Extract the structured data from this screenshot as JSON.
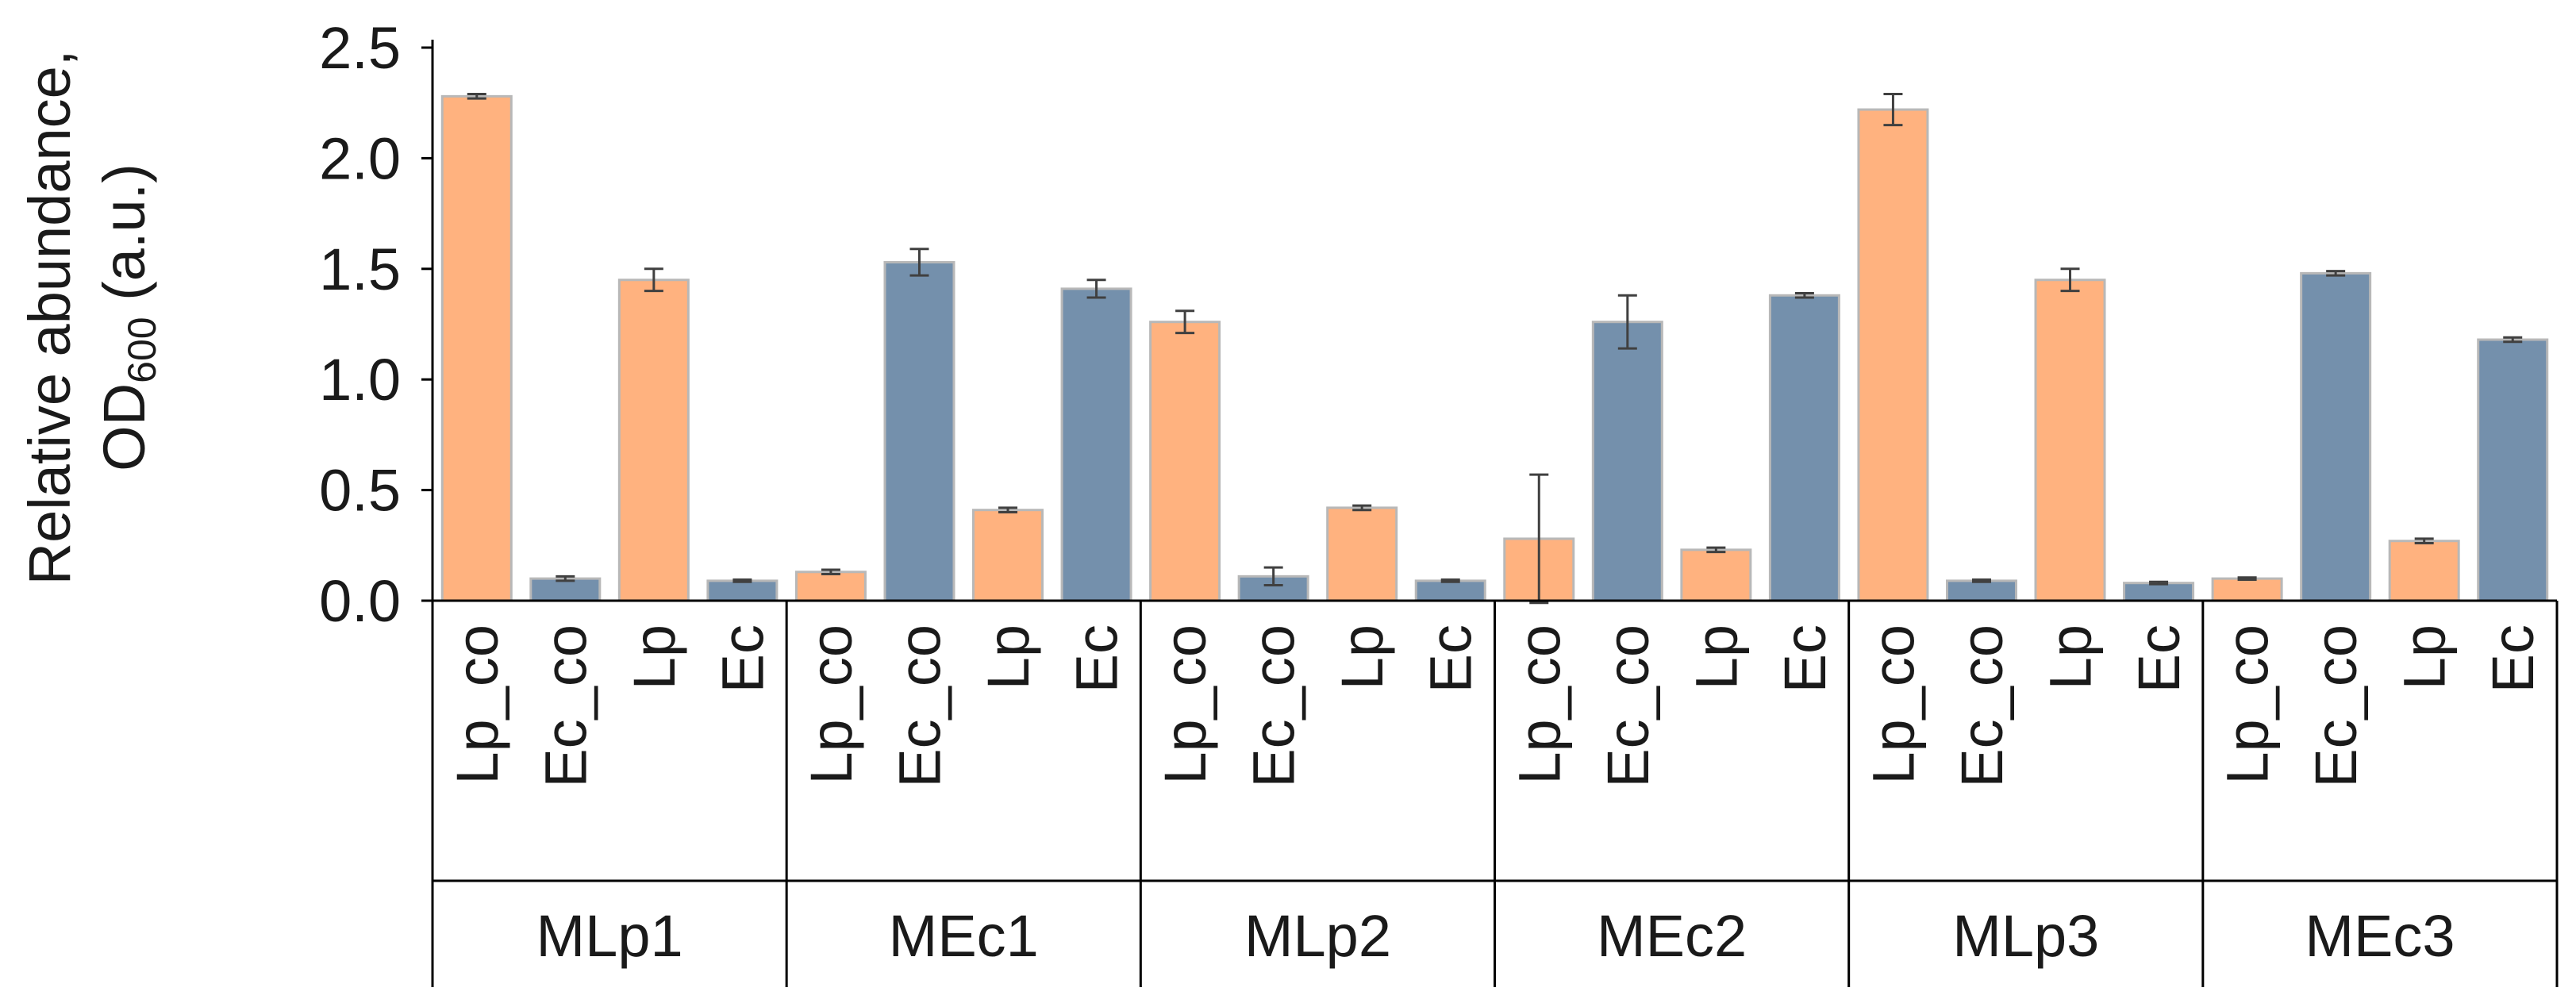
{
  "chart_data": {
    "type": "bar",
    "title": "",
    "ylabel_line1": "Relative abundance,",
    "ylabel_line2_main": "OD",
    "ylabel_line2_sub": "600",
    "ylabel_line2_rest": " (a.u.)",
    "ylim": [
      0,
      2.5
    ],
    "yticks": [
      "0.0",
      "0.5",
      "1.0",
      "1.5",
      "2.0",
      "2.5"
    ],
    "ytick_values": [
      0,
      0.5,
      1.0,
      1.5,
      2.0,
      2.5
    ],
    "colors": {
      "Lp": "#FFB27F",
      "Ec": "#7490AC",
      "axis": "#000000",
      "error": "#404040"
    },
    "groups": [
      {
        "name": "MLp1",
        "bars": [
          {
            "label": "Lp_co",
            "species": "Lp",
            "value": 2.28,
            "error": 0.01
          },
          {
            "label": "Ec_co",
            "species": "Ec",
            "value": 0.1,
            "error": 0.01
          },
          {
            "label": "Lp",
            "species": "Lp",
            "value": 1.45,
            "error": 0.05
          },
          {
            "label": "Ec",
            "species": "Ec",
            "value": 0.09,
            "error": 0.005
          }
        ]
      },
      {
        "name": "MEc1",
        "bars": [
          {
            "label": "Lp_co",
            "species": "Lp",
            "value": 0.13,
            "error": 0.01
          },
          {
            "label": "Ec_co",
            "species": "Ec",
            "value": 1.53,
            "error": 0.06
          },
          {
            "label": "Lp",
            "species": "Lp",
            "value": 0.41,
            "error": 0.01
          },
          {
            "label": "Ec",
            "species": "Ec",
            "value": 1.41,
            "error": 0.04
          }
        ]
      },
      {
        "name": "MLp2",
        "bars": [
          {
            "label": "Lp_co",
            "species": "Lp",
            "value": 1.26,
            "error": 0.05
          },
          {
            "label": "Ec_co",
            "species": "Ec",
            "value": 0.11,
            "error": 0.04
          },
          {
            "label": "Lp",
            "species": "Lp",
            "value": 0.42,
            "error": 0.01
          },
          {
            "label": "Ec",
            "species": "Ec",
            "value": 0.09,
            "error": 0.005
          }
        ]
      },
      {
        "name": "MEc2",
        "bars": [
          {
            "label": "Lp_co",
            "species": "Lp",
            "value": 0.28,
            "error": 0.29
          },
          {
            "label": "Ec_co",
            "species": "Ec",
            "value": 1.26,
            "error": 0.12
          },
          {
            "label": "Lp",
            "species": "Lp",
            "value": 0.23,
            "error": 0.01
          },
          {
            "label": "Ec",
            "species": "Ec",
            "value": 1.38,
            "error": 0.01
          }
        ]
      },
      {
        "name": "MLp3",
        "bars": [
          {
            "label": "Lp_co",
            "species": "Lp",
            "value": 2.22,
            "error": 0.07
          },
          {
            "label": "Ec_co",
            "species": "Ec",
            "value": 0.09,
            "error": 0.005
          },
          {
            "label": "Lp",
            "species": "Lp",
            "value": 1.45,
            "error": 0.05
          },
          {
            "label": "Ec",
            "species": "Ec",
            "value": 0.08,
            "error": 0.005
          }
        ]
      },
      {
        "name": "MEc3",
        "bars": [
          {
            "label": "Lp_co",
            "species": "Lp",
            "value": 0.1,
            "error": 0.005
          },
          {
            "label": "Ec_co",
            "species": "Ec",
            "value": 1.48,
            "error": 0.01
          },
          {
            "label": "Lp",
            "species": "Lp",
            "value": 0.27,
            "error": 0.01
          },
          {
            "label": "Ec",
            "species": "Ec",
            "value": 1.18,
            "error": 0.01
          }
        ]
      }
    ]
  }
}
